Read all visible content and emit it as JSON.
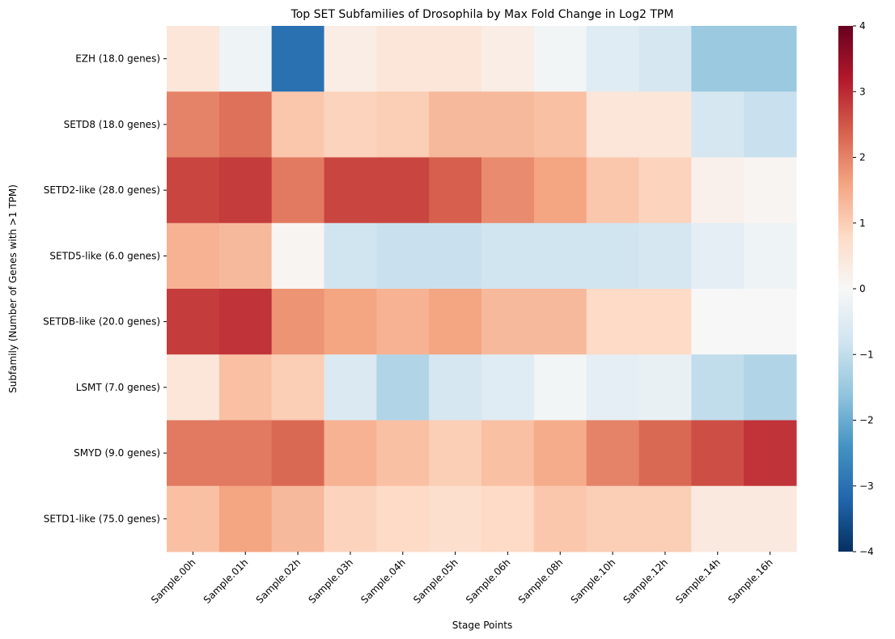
{
  "chart_data": {
    "type": "heatmap",
    "title": "Top SET Subfamilies of Drosophila by Max Fold Change in Log2 TPM",
    "xlabel": "Stage Points",
    "ylabel": "Subfamily (Number of Genes with >1 TPM)",
    "x": [
      "Sample.00h",
      "Sample.01h",
      "Sample.02h",
      "Sample.03h",
      "Sample.04h",
      "Sample.05h",
      "Sample.06h",
      "Sample.08h",
      "Sample.10h",
      "Sample.12h",
      "Sample.14h",
      "Sample.16h"
    ],
    "y": [
      "EZH (18.0 genes)",
      "SETD8 (18.0 genes)",
      "SETD2-like (28.0 genes)",
      "SETD5-like (6.0 genes)",
      "SETDB-like (20.0 genes)",
      "LSMT (7.0 genes)",
      "SMYD (9.0 genes)",
      "SETD1-like (75.0 genes)"
    ],
    "values": [
      [
        0.5,
        -0.2,
        -3.0,
        0.3,
        0.5,
        0.5,
        0.3,
        -0.1,
        -0.5,
        -0.7,
        -1.5,
        -1.5
      ],
      [
        2.0,
        2.2,
        1.1,
        0.9,
        1.0,
        1.3,
        1.3,
        1.2,
        0.5,
        0.5,
        -0.7,
        -0.9
      ],
      [
        2.7,
        2.8,
        2.1,
        2.7,
        2.7,
        2.4,
        1.9,
        1.6,
        1.1,
        0.9,
        0.2,
        0.1
      ],
      [
        1.4,
        1.3,
        0.1,
        -0.8,
        -0.9,
        -0.9,
        -0.8,
        -0.8,
        -0.8,
        -0.7,
        -0.4,
        -0.2
      ],
      [
        2.8,
        2.9,
        1.8,
        1.6,
        1.4,
        1.6,
        1.3,
        1.3,
        0.8,
        0.8,
        0.0,
        0.0
      ],
      [
        0.5,
        1.2,
        1.0,
        -0.6,
        -1.2,
        -0.7,
        -0.5,
        -0.1,
        -0.4,
        -0.3,
        -1.0,
        -1.2
      ],
      [
        2.1,
        2.1,
        2.3,
        1.4,
        1.2,
        1.0,
        1.2,
        1.5,
        2.0,
        2.3,
        2.6,
        2.9
      ],
      [
        1.2,
        1.6,
        1.3,
        0.9,
        0.8,
        0.7,
        0.8,
        1.1,
        1.0,
        1.0,
        0.4,
        0.4
      ]
    ],
    "colormap": "RdBu_r",
    "vmin": -4,
    "vmax": 4,
    "colorbar_ticks": [
      "4",
      "3",
      "2",
      "1",
      "0",
      "−1",
      "−2",
      "−3",
      "−4"
    ],
    "grid": false
  }
}
